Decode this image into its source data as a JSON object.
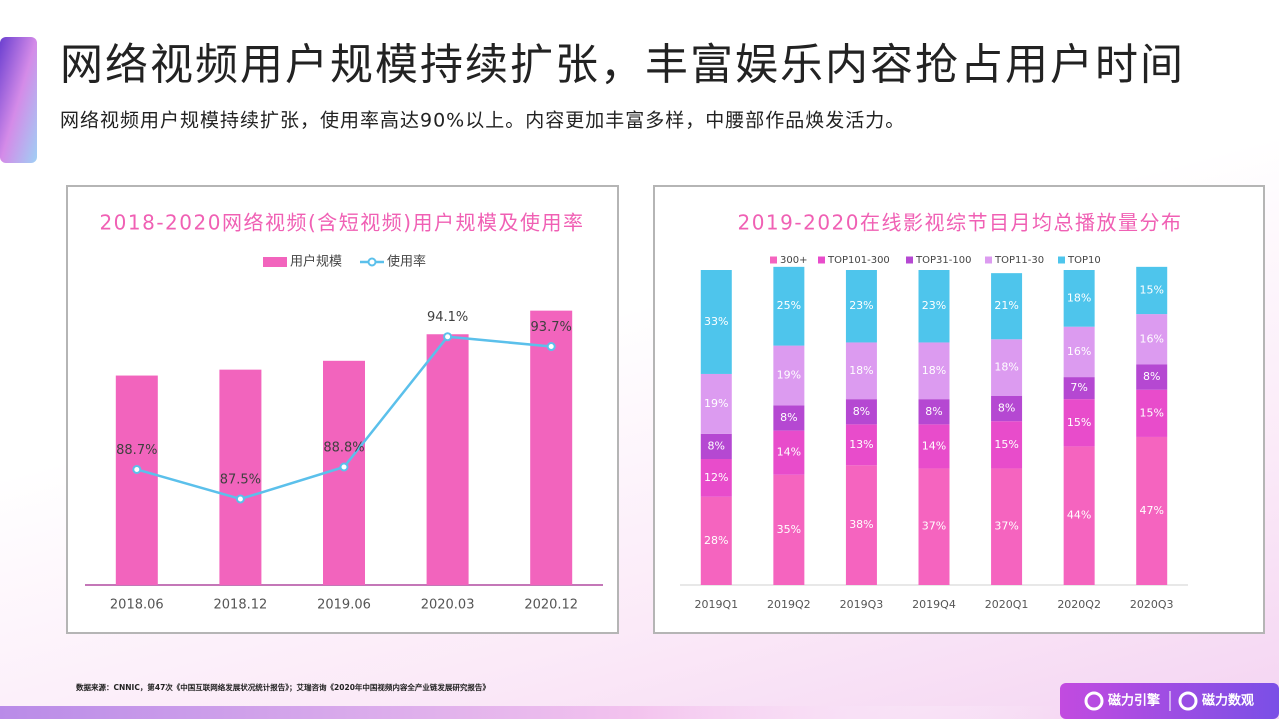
{
  "header": {
    "title": "网络视频用户规模持续扩张，丰富娱乐内容抢占用户时间",
    "subtitle": "网络视频用户规模持续扩张，使用率高达90%以上。内容更加丰富多样，中腰部作品焕发活力。"
  },
  "chart_data": [
    {
      "type": "bar",
      "title": "2018-2020网络视频(含短视频)用户规模及使用率",
      "categories": [
        "2018.06",
        "2018.12",
        "2019.06",
        "2020.03",
        "2020.12"
      ],
      "series": [
        {
          "name": "用户规模",
          "color": "#f264bd",
          "values": [
            7.1,
            7.3,
            7.6,
            8.5,
            9.3
          ]
        },
        {
          "name": "使用率",
          "type": "line",
          "axis": "y2",
          "color": "#5bc0eb",
          "values": [
            88.7,
            87.5,
            88.8,
            94.1,
            93.7
          ],
          "value_labels": [
            "88.7%",
            "87.5%",
            "88.8%",
            "94.1%",
            "93.7%"
          ]
        }
      ],
      "ylim": [
        0,
        10
      ],
      "y2lim": [
        84,
        96
      ]
    },
    {
      "type": "bar",
      "stacked": true,
      "title": "2019-2020在线影视综节目月均总播放量分布",
      "categories": [
        "2019Q1",
        "2019Q2",
        "2019Q3",
        "2019Q4",
        "2020Q1",
        "2020Q2",
        "2020Q3"
      ],
      "series": [
        {
          "name": "300+",
          "color": "#f564bf",
          "values": [
            28,
            35,
            38,
            37,
            37,
            44,
            47
          ],
          "value_labels": [
            "28%",
            "35%",
            "38%",
            "37%",
            "37%",
            "44%",
            "47%"
          ]
        },
        {
          "name": "TOP101-300",
          "color": "#e84ccb",
          "values": [
            12,
            14,
            13,
            14,
            15,
            15,
            15
          ],
          "value_labels": [
            "12%",
            "14%",
            "13%",
            "14%",
            "15%",
            "15%",
            "15%"
          ]
        },
        {
          "name": "TOP31-100",
          "color": "#b548d2",
          "values": [
            8,
            8,
            8,
            8,
            8,
            7,
            8
          ],
          "value_labels": [
            "8%",
            "8%",
            "8%",
            "8%",
            "8%",
            "7%",
            "8%"
          ]
        },
        {
          "name": "TOP11-30",
          "color": "#dc9bf0",
          "values": [
            19,
            19,
            18,
            18,
            18,
            16,
            16
          ],
          "value_labels": [
            "19%",
            "19%",
            "18%",
            "18%",
            "18%",
            "16%",
            "16%"
          ]
        },
        {
          "name": "TOP10",
          "color": "#4ec5ec",
          "values": [
            33,
            25,
            23,
            23,
            21,
            18,
            15
          ],
          "value_labels": [
            "33%",
            "25%",
            "23%",
            "23%",
            "21%",
            "18%",
            "15%"
          ]
        }
      ],
      "ylim": [
        0,
        100
      ]
    }
  ],
  "footer": {
    "source": "数据来源：CNNIC，第47次《中国互联网络发展状况统计报告》；艾瑞咨询《2020年中国视频内容全产业链发展研究报告》",
    "logos": [
      "磁力引擎",
      "磁力数观"
    ]
  }
}
